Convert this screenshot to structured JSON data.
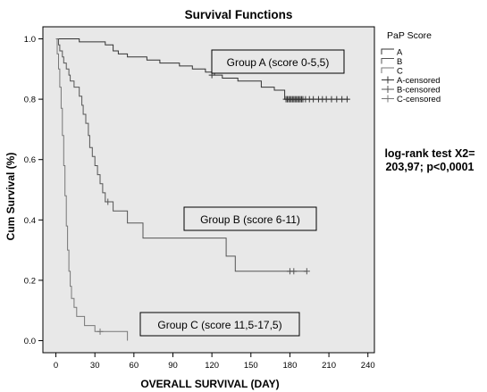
{
  "chart_data": {
    "type": "line",
    "subtype": "kaplan-meier step",
    "title": "Survival Functions",
    "xlabel": "OVERALL SURVIVAL (DAY)",
    "ylabel": "Cum Survival (%)",
    "xlim": [
      -10,
      245
    ],
    "ylim": [
      -0.04,
      1.04
    ],
    "xticks": [
      0,
      30,
      60,
      90,
      120,
      150,
      180,
      210,
      240
    ],
    "yticks": [
      0.0,
      0.2,
      0.4,
      0.6,
      0.8,
      1.0
    ],
    "xtick_labels": [
      "0",
      "30",
      "60",
      "90",
      "120",
      "150",
      "180",
      "210",
      "240"
    ],
    "ytick_labels": [
      "0.0",
      "0.2",
      "0.4",
      "0.6",
      "0.8",
      "1.0"
    ],
    "grid": false,
    "plot_background": "#e8e8e8",
    "legend": {
      "title": "PaP Score",
      "placement": "right",
      "entries": [
        "A",
        "B",
        "C",
        "A-censored",
        "B-censored",
        "C-censored"
      ]
    },
    "series": [
      {
        "name": "A",
        "label": "Group A (score 0-5,5)",
        "color": "#333333",
        "steps": [
          [
            0,
            1.0
          ],
          [
            18,
            0.99
          ],
          [
            38,
            0.98
          ],
          [
            44,
            0.96
          ],
          [
            48,
            0.95
          ],
          [
            55,
            0.94
          ],
          [
            70,
            0.93
          ],
          [
            80,
            0.92
          ],
          [
            95,
            0.91
          ],
          [
            105,
            0.9
          ],
          [
            115,
            0.89
          ],
          [
            122,
            0.88
          ],
          [
            128,
            0.87
          ],
          [
            140,
            0.86
          ],
          [
            158,
            0.84
          ],
          [
            168,
            0.83
          ],
          [
            176,
            0.8
          ],
          [
            225,
            0.8
          ]
        ],
        "censored": [
          [
            120,
            0.88
          ],
          [
            177,
            0.8
          ],
          [
            178,
            0.8
          ],
          [
            179,
            0.8
          ],
          [
            180,
            0.8
          ],
          [
            181,
            0.8
          ],
          [
            182,
            0.8
          ],
          [
            183,
            0.8
          ],
          [
            184,
            0.8
          ],
          [
            185,
            0.8
          ],
          [
            186,
            0.8
          ],
          [
            187,
            0.8
          ],
          [
            188,
            0.8
          ],
          [
            189,
            0.8
          ],
          [
            190,
            0.8
          ],
          [
            192,
            0.8
          ],
          [
            195,
            0.8
          ],
          [
            198,
            0.8
          ],
          [
            202,
            0.8
          ],
          [
            205,
            0.8
          ],
          [
            208,
            0.8
          ],
          [
            212,
            0.8
          ],
          [
            216,
            0.8
          ],
          [
            220,
            0.8
          ],
          [
            224,
            0.8
          ]
        ]
      },
      {
        "name": "B",
        "label": "Group B (score 6-11)",
        "color": "#555555",
        "steps": [
          [
            0,
            1.0
          ],
          [
            2,
            0.98
          ],
          [
            3,
            0.96
          ],
          [
            5,
            0.94
          ],
          [
            6,
            0.92
          ],
          [
            8,
            0.9
          ],
          [
            10,
            0.88
          ],
          [
            11,
            0.86
          ],
          [
            14,
            0.84
          ],
          [
            18,
            0.81
          ],
          [
            20,
            0.78
          ],
          [
            21,
            0.75
          ],
          [
            23,
            0.72
          ],
          [
            25,
            0.68
          ],
          [
            26,
            0.64
          ],
          [
            28,
            0.61
          ],
          [
            30,
            0.58
          ],
          [
            32,
            0.55
          ],
          [
            34,
            0.52
          ],
          [
            36,
            0.49
          ],
          [
            38,
            0.46
          ],
          [
            44,
            0.43
          ],
          [
            55,
            0.39
          ],
          [
            67,
            0.34
          ],
          [
            131,
            0.28
          ],
          [
            138,
            0.23
          ],
          [
            193,
            0.23
          ]
        ],
        "censored": [
          [
            40,
            0.46
          ],
          [
            180,
            0.23
          ],
          [
            183,
            0.23
          ],
          [
            193,
            0.23
          ]
        ]
      },
      {
        "name": "C",
        "label": "Group C (score 11,5-17,5)",
        "color": "#777777",
        "steps": [
          [
            0,
            1.0
          ],
          [
            1,
            0.95
          ],
          [
            2,
            0.9
          ],
          [
            3,
            0.84
          ],
          [
            4,
            0.77
          ],
          [
            5,
            0.68
          ],
          [
            6,
            0.58
          ],
          [
            7,
            0.48
          ],
          [
            8,
            0.38
          ],
          [
            9,
            0.3
          ],
          [
            10,
            0.23
          ],
          [
            11,
            0.18
          ],
          [
            12,
            0.14
          ],
          [
            14,
            0.11
          ],
          [
            16,
            0.08
          ],
          [
            22,
            0.05
          ],
          [
            30,
            0.03
          ],
          [
            55,
            0.0
          ]
        ],
        "censored": [
          [
            34,
            0.03
          ]
        ]
      }
    ],
    "annotations": [
      {
        "text": "log-rank test X2=",
        "placement": "right"
      },
      {
        "text": "203,97; p<0,0001",
        "placement": "right"
      }
    ]
  }
}
